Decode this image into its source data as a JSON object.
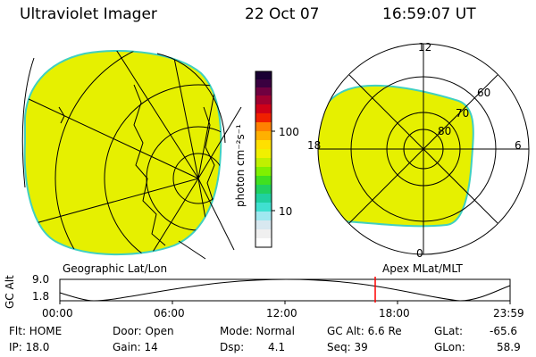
{
  "header": {
    "instrument": "Ultraviolet Imager",
    "date": "22 Oct 07",
    "time": "16:59:07 UT"
  },
  "colorbar": {
    "unit_label": "photon cm⁻²s⁻¹",
    "ticks": [
      "100",
      "10"
    ]
  },
  "left_panel": {
    "label": "Geographic Lat/Lon",
    "fill_color": "#e6f000",
    "edge_color": "#40d0c0",
    "grid_color": "#000000"
  },
  "right_panel": {
    "label": "Apex MLat/MLT",
    "mlt_labels": {
      "top": "12",
      "left": "18",
      "right": "6",
      "bottom": "0"
    },
    "lat_labels": [
      "60",
      "70",
      "80"
    ]
  },
  "timeline": {
    "ylabel": "GC Alt",
    "yticks": [
      "9.0",
      "1.8"
    ],
    "xticks": [
      "00:00",
      "06:00",
      "12:00",
      "18:00",
      "23:59"
    ],
    "marker_color": "#ff0000",
    "marker_time_hours": 17.0
  },
  "status": {
    "flt": "Flt: HOME",
    "ip": "IP: 18.0",
    "door": "Door: Open",
    "gain": "Gain: 14",
    "mode": "Mode: Normal",
    "dsp_label": "Dsp:",
    "dsp_value": "4.1",
    "gc_alt": "GC Alt: 6.6 Re",
    "seq": "Seq: 39",
    "glat_label": "GLat:",
    "glat_value": "-65.6",
    "glon_label": "GLon:",
    "glon_value": "58.9"
  }
}
